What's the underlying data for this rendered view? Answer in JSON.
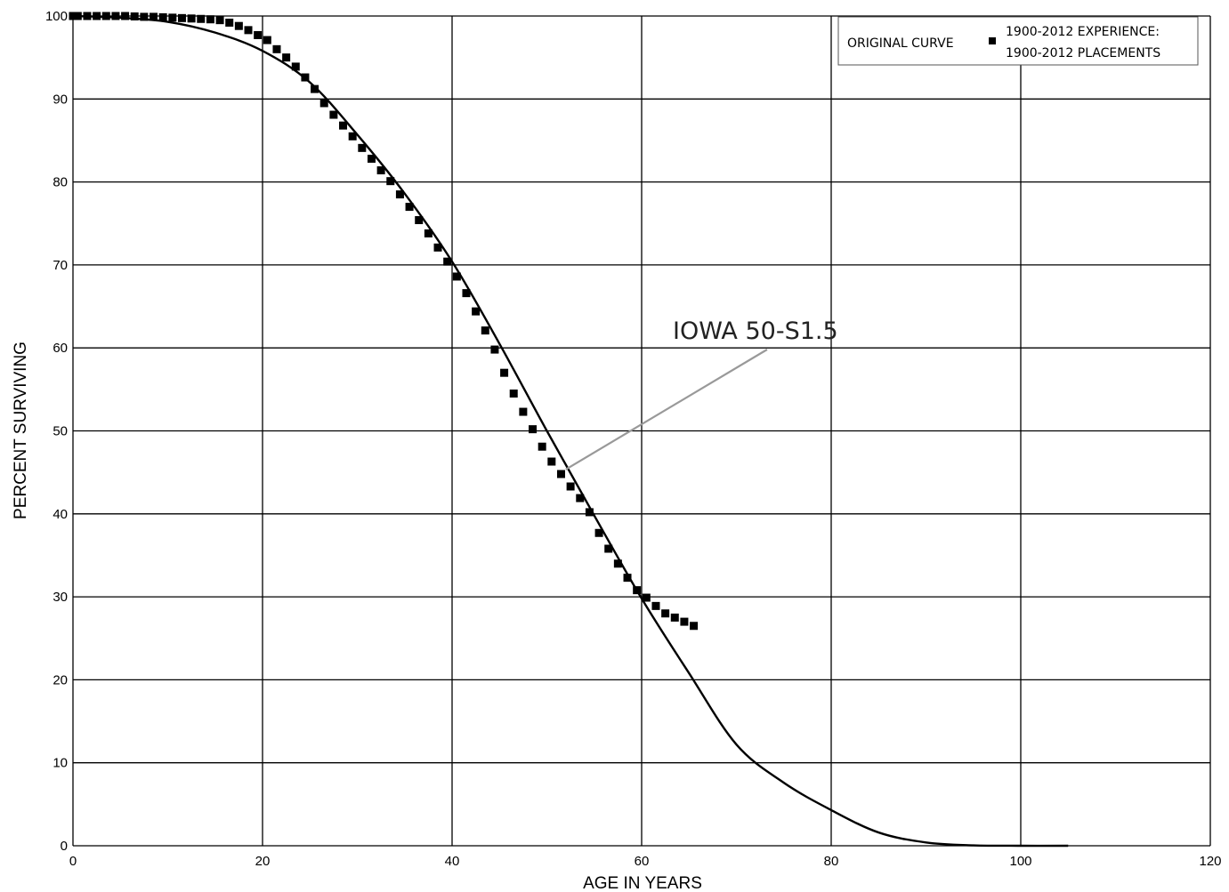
{
  "chart_data": {
    "type": "line",
    "xlabel": "AGE IN YEARS",
    "ylabel": "PERCENT SURVIVING",
    "xlim": [
      0,
      120
    ],
    "ylim": [
      0,
      100
    ],
    "x_ticks": [
      "0",
      "20",
      "40",
      "60",
      "80",
      "100",
      "120"
    ],
    "y_ticks": [
      "0",
      "10",
      "20",
      "30",
      "40",
      "50",
      "60",
      "70",
      "80",
      "90",
      "100"
    ],
    "grid": true,
    "legend_placement": "top-right",
    "legend": {
      "curve_label": "ORIGINAL CURVE",
      "points_label_line1": "1900-2012 EXPERIENCE:",
      "points_label_line2": "1900-2012 PLACEMENTS"
    },
    "annotation": {
      "text": "IOWA 50-S1.5",
      "points_to_x": 52,
      "points_to_y": 46
    },
    "series": [
      {
        "name": "ORIGINAL CURVE",
        "kind": "line",
        "color": "#000000",
        "x": [
          0,
          5,
          10,
          15,
          20,
          25,
          30,
          35,
          40,
          45,
          50,
          55,
          60,
          65,
          70,
          75,
          80,
          85,
          90,
          95,
          100,
          105
        ],
        "y": [
          100,
          99.8,
          99.3,
          98.0,
          95.8,
          92.0,
          85.7,
          78.6,
          70.4,
          60.5,
          50.0,
          39.8,
          29.8,
          20.8,
          12.2,
          7.6,
          4.3,
          1.6,
          0.4,
          0.05,
          0,
          0
        ]
      },
      {
        "name": "1900-2012 EXPERIENCE: 1900-2012 PLACEMENTS",
        "kind": "points",
        "color": "#000000",
        "x": [
          0,
          0.5,
          1.5,
          2.5,
          3.5,
          4.5,
          5.5,
          6.5,
          7.5,
          8.5,
          9.5,
          10.5,
          11.5,
          12.5,
          13.5,
          14.5,
          15.5,
          16.5,
          17.5,
          18.5,
          19.5,
          20.5,
          21.5,
          22.5,
          23.5,
          24.5,
          25.5,
          26.5,
          27.5,
          28.5,
          29.5,
          30.5,
          31.5,
          32.5,
          33.5,
          34.5,
          35.5,
          36.5,
          37.5,
          38.5,
          39.5,
          40.5,
          41.5,
          42.5,
          43.5,
          44.5,
          45.5,
          46.5,
          47.5,
          48.5,
          49.5,
          50.5,
          51.5,
          52.5,
          53.5,
          54.5,
          55.5,
          56.5,
          57.5,
          58.5,
          59.5,
          60.5,
          61.5,
          62.5,
          63.5,
          64.5,
          65.5
        ],
        "y": [
          100,
          100,
          100,
          100,
          100,
          100,
          100,
          99.95,
          99.9,
          99.9,
          99.85,
          99.8,
          99.75,
          99.7,
          99.65,
          99.6,
          99.5,
          99.2,
          98.8,
          98.3,
          97.7,
          97.1,
          96.0,
          95.0,
          93.9,
          92.6,
          91.2,
          89.5,
          88.1,
          86.8,
          85.5,
          84.1,
          82.8,
          81.4,
          80.1,
          78.5,
          77.0,
          75.4,
          73.8,
          72.1,
          70.4,
          68.6,
          66.6,
          64.4,
          62.1,
          59.8,
          57.0,
          54.5,
          52.3,
          50.2,
          48.1,
          46.3,
          44.8,
          43.3,
          41.9,
          40.2,
          37.7,
          35.8,
          34.0,
          32.3,
          30.8,
          29.9,
          28.9,
          28.0,
          27.5,
          27.0,
          26.5
        ]
      }
    ]
  }
}
